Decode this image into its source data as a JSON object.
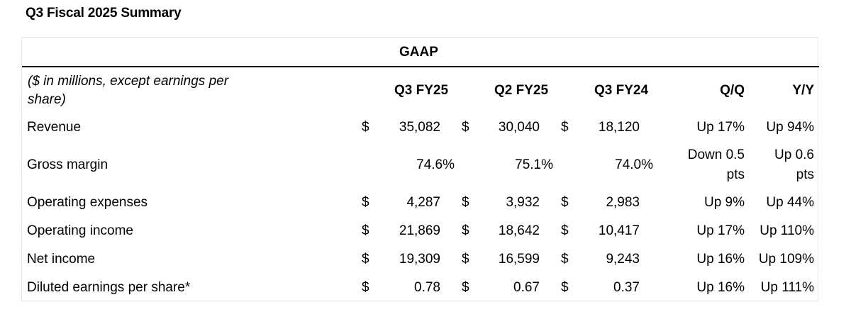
{
  "title": "Q3 Fiscal 2025 Summary",
  "group_header": "GAAP",
  "units_note": "($ in millions, except earnings per share)",
  "columns": [
    "Q3 FY25",
    "Q2 FY25",
    "Q3 FY24",
    "Q/Q",
    "Y/Y"
  ],
  "rows": [
    {
      "label": "Revenue",
      "currency": "$",
      "q3fy25": "35,082",
      "q2fy25": "30,040",
      "q3fy24": "18,120",
      "qq": "Up 17%",
      "yy": "Up 94%"
    },
    {
      "label": "Gross margin",
      "currency": "",
      "q3fy25": "74.6%",
      "q2fy25": "75.1%",
      "q3fy24": "74.0%",
      "qq_line1": "Down 0.5",
      "qq_line2": "pts",
      "yy_line1": "Up 0.6",
      "yy_line2": "pts"
    },
    {
      "label": "Operating expenses",
      "currency": "$",
      "q3fy25": "4,287",
      "q2fy25": "3,932",
      "q3fy24": "2,983",
      "qq": "Up 9%",
      "yy": "Up 44%"
    },
    {
      "label": "Operating income",
      "currency": "$",
      "q3fy25": "21,869",
      "q2fy25": "18,642",
      "q3fy24": "10,417",
      "qq": "Up 17%",
      "yy": "Up 110%"
    },
    {
      "label": "Net income",
      "currency": "$",
      "q3fy25": "19,309",
      "q2fy25": "16,599",
      "q3fy24": "9,243",
      "qq": "Up 16%",
      "yy": "Up 109%"
    },
    {
      "label": "Diluted earnings per share*",
      "currency": "$",
      "q3fy25": "0.78",
      "q2fy25": "0.67",
      "q3fy24": "0.37",
      "qq": "Up 16%",
      "yy": "Up 111%"
    }
  ]
}
